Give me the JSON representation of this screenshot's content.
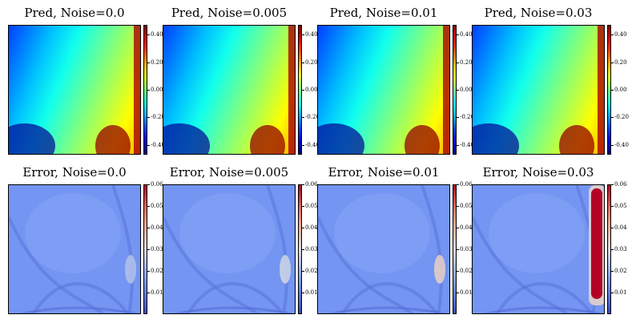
{
  "chart_data": [
    {
      "type": "heatmap",
      "title": "Pred, Noise=0.0",
      "noise": 0.0,
      "quantity": "prediction",
      "colormap": "jet",
      "colorbar": {
        "vmin": -0.47,
        "vmax": 0.47,
        "ticks": [
          "0.40",
          "0.20",
          "0.00",
          "-0.20",
          "-0.40"
        ],
        "tick_values": [
          0.4,
          0.2,
          0.0,
          -0.2,
          -0.4
        ]
      }
    },
    {
      "type": "heatmap",
      "title": "Pred, Noise=0.005",
      "noise": 0.005,
      "quantity": "prediction",
      "colormap": "jet",
      "colorbar": {
        "vmin": -0.47,
        "vmax": 0.47,
        "ticks": [
          "0.40",
          "0.20",
          "0.00",
          "-0.20",
          "-0.40"
        ],
        "tick_values": [
          0.4,
          0.2,
          0.0,
          -0.2,
          -0.4
        ]
      }
    },
    {
      "type": "heatmap",
      "title": "Pred, Noise=0.01",
      "noise": 0.01,
      "quantity": "prediction",
      "colormap": "jet",
      "colorbar": {
        "vmin": -0.47,
        "vmax": 0.47,
        "ticks": [
          "0.40",
          "0.20",
          "0.00",
          "-0.20",
          "-0.40"
        ],
        "tick_values": [
          0.4,
          0.2,
          0.0,
          -0.2,
          -0.4
        ]
      }
    },
    {
      "type": "heatmap",
      "title": "Pred, Noise=0.03",
      "noise": 0.03,
      "quantity": "prediction",
      "colormap": "jet",
      "colorbar": {
        "vmin": -0.47,
        "vmax": 0.47,
        "ticks": [
          "0.40",
          "0.20",
          "0.00",
          "-0.20",
          "-0.40"
        ],
        "tick_values": [
          0.4,
          0.2,
          0.0,
          -0.2,
          -0.4
        ]
      }
    },
    {
      "type": "heatmap",
      "title": "Error, Noise=0.0",
      "noise": 0.0,
      "quantity": "error",
      "colormap": "coolwarm",
      "colorbar": {
        "vmin": 0.0,
        "vmax": 0.06,
        "ticks": [
          "0.06",
          "0.05",
          "0.04",
          "0.03",
          "0.02",
          "0.01"
        ],
        "tick_values": [
          0.06,
          0.05,
          0.04,
          0.03,
          0.02,
          0.01
        ]
      }
    },
    {
      "type": "heatmap",
      "title": "Error, Noise=0.005",
      "noise": 0.005,
      "quantity": "error",
      "colormap": "coolwarm",
      "colorbar": {
        "vmin": 0.0,
        "vmax": 0.06,
        "ticks": [
          "0.06",
          "0.05",
          "0.04",
          "0.03",
          "0.02",
          "0.01"
        ],
        "tick_values": [
          0.06,
          0.05,
          0.04,
          0.03,
          0.02,
          0.01
        ]
      }
    },
    {
      "type": "heatmap",
      "title": "Error, Noise=0.01",
      "noise": 0.01,
      "quantity": "error",
      "colormap": "coolwarm",
      "colorbar": {
        "vmin": 0.0,
        "vmax": 0.06,
        "ticks": [
          "0.06",
          "0.05",
          "0.04",
          "0.03",
          "0.02",
          "0.01"
        ],
        "tick_values": [
          0.06,
          0.05,
          0.04,
          0.03,
          0.02,
          0.01
        ]
      }
    },
    {
      "type": "heatmap",
      "title": "Error, Noise=0.03",
      "noise": 0.03,
      "quantity": "error",
      "colormap": "coolwarm",
      "colorbar": {
        "vmin": 0.0,
        "vmax": 0.06,
        "ticks": [
          "0.06",
          "0.05",
          "0.04",
          "0.03",
          "0.02",
          "0.01"
        ],
        "tick_values": [
          0.06,
          0.05,
          0.04,
          0.03,
          0.02,
          0.01
        ]
      }
    }
  ]
}
